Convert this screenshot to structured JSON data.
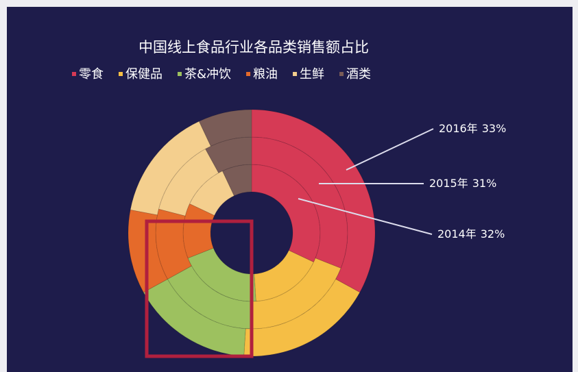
{
  "chart_data": {
    "type": "donut",
    "title": "中国线上食品行业各品类销售额占比",
    "categories": [
      "零食",
      "保健品",
      "茶&冲饮",
      "粮油",
      "生鲜",
      "酒类"
    ],
    "colors": [
      "#d63a55",
      "#f5be45",
      "#9dc15f",
      "#e56a2a",
      "#f4cf8e",
      "#7a5c57"
    ],
    "series": [
      {
        "name": "2014年",
        "values": [
          32,
          17,
          20,
          13,
          11,
          7
        ],
        "value_labels": [
          "32%",
          null,
          null,
          null,
          null,
          null
        ]
      },
      {
        "name": "2015年",
        "values": [
          31,
          19,
          17,
          12,
          13,
          8
        ],
        "value_labels": [
          "31%",
          null,
          null,
          null,
          null,
          null
        ]
      },
      {
        "name": "2016年",
        "values": [
          33,
          18,
          16,
          11,
          15,
          7
        ],
        "value_labels": [
          "33%",
          null,
          null,
          null,
          null,
          null
        ]
      }
    ],
    "legend": "top"
  }
}
